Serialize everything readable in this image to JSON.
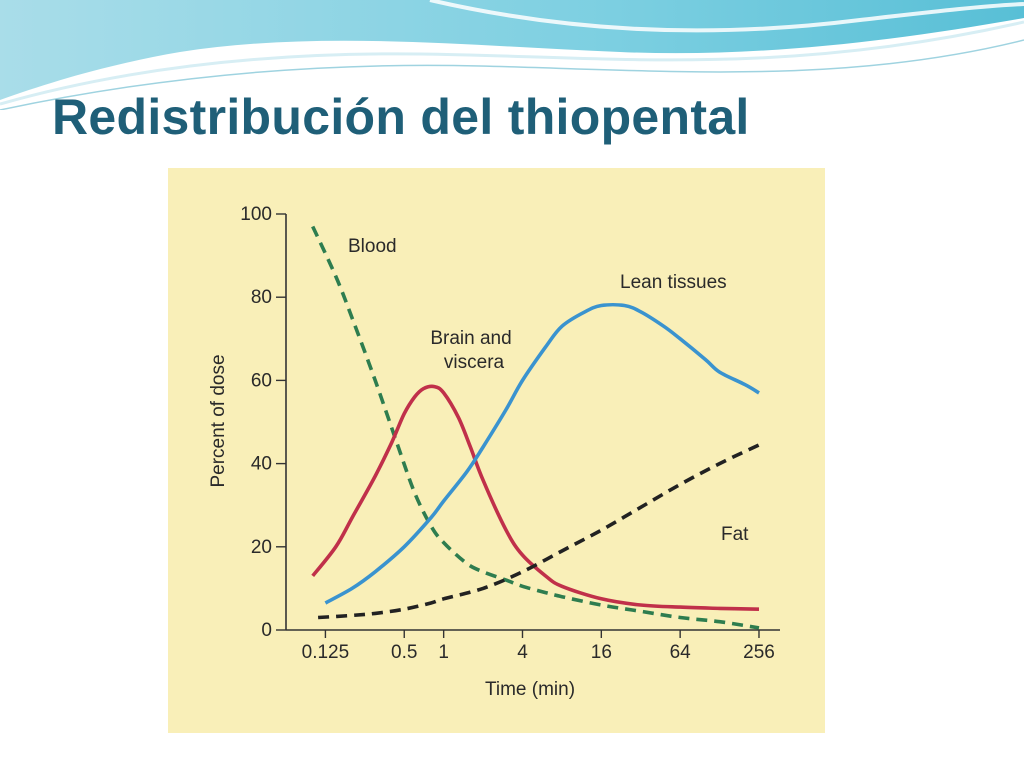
{
  "slide": {
    "title": "Redistribución del thiopental",
    "colors": {
      "title": "#1f5f78",
      "panel_background": "#f9efb8",
      "header_waves": "#7fcfe0"
    }
  },
  "chart_data": {
    "type": "line",
    "title": "",
    "xlabel": "Time (min)",
    "ylabel": "Percent of dose",
    "x_scale": "log2",
    "x_ticks": [
      0.125,
      0.5,
      1,
      4,
      16,
      64,
      256
    ],
    "x_tick_labels": [
      "0.125",
      "0.5",
      "1",
      "4",
      "16",
      "64",
      "256"
    ],
    "y_ticks": [
      0,
      20,
      40,
      60,
      80,
      100
    ],
    "y_tick_labels": [
      "0",
      "20",
      "40",
      "60",
      "80",
      "100"
    ],
    "xlim": [
      0.0625,
      300
    ],
    "ylim": [
      0,
      100
    ],
    "grid": false,
    "legend": "none (curves labeled directly)",
    "series": [
      {
        "name": "Blood",
        "label": "Blood",
        "color": "#2e7d4f",
        "style": "dashed",
        "x": [
          0.1,
          0.15,
          0.2,
          0.3,
          0.45,
          0.6,
          0.8,
          1.0,
          1.5,
          2,
          3,
          4,
          6,
          8,
          16,
          32,
          64,
          128,
          256
        ],
        "y": [
          97,
          85,
          75,
          60,
          44,
          33,
          25,
          21,
          16,
          14,
          12,
          10.5,
          9,
          8,
          6,
          4.5,
          3,
          2,
          0.5
        ]
      },
      {
        "name": "Brain and viscera",
        "label": [
          "Brain and",
          "viscera"
        ],
        "color": "#c0304a",
        "style": "solid",
        "x": [
          0.1,
          0.15,
          0.2,
          0.3,
          0.4,
          0.5,
          0.6,
          0.7,
          0.85,
          1.0,
          1.3,
          1.6,
          2,
          3,
          4,
          6,
          8,
          16,
          32,
          64,
          128,
          256
        ],
        "y": [
          13,
          20,
          27,
          37,
          45,
          52,
          56,
          58,
          58.5,
          57,
          51,
          44,
          36,
          24,
          18,
          13,
          10.5,
          7.5,
          6,
          5.5,
          5.2,
          5
        ]
      },
      {
        "name": "Lean tissues",
        "label": "Lean tissues",
        "color": "#3a93cf",
        "style": "solid",
        "x": [
          0.125,
          0.2,
          0.3,
          0.5,
          0.8,
          1,
          1.5,
          2,
          3,
          4,
          6,
          8,
          12,
          16,
          24,
          32,
          48,
          64,
          100,
          128,
          200,
          256
        ],
        "y": [
          6.5,
          10,
          14,
          20,
          27,
          31,
          38,
          44,
          53,
          60,
          68,
          73,
          76.5,
          78,
          78,
          76.5,
          73,
          70,
          65,
          62,
          59,
          57
        ]
      },
      {
        "name": "Fat",
        "label": "Fat",
        "color": "#222222",
        "style": "dashed",
        "x": [
          0.11,
          0.2,
          0.3,
          0.5,
          0.8,
          1,
          2,
          4,
          8,
          16,
          32,
          64,
          128,
          256
        ],
        "y": [
          3,
          3.5,
          4,
          5,
          6.5,
          7.5,
          10,
          14,
          19,
          24,
          29.5,
          35,
          40,
          44.5
        ]
      }
    ],
    "annotations": [
      {
        "text": "Blood",
        "series": "Blood"
      },
      {
        "text": "Brain and viscera",
        "series": "Brain and viscera"
      },
      {
        "text": "Lean tissues",
        "series": "Lean tissues"
      },
      {
        "text": "Fat",
        "series": "Fat"
      }
    ]
  }
}
